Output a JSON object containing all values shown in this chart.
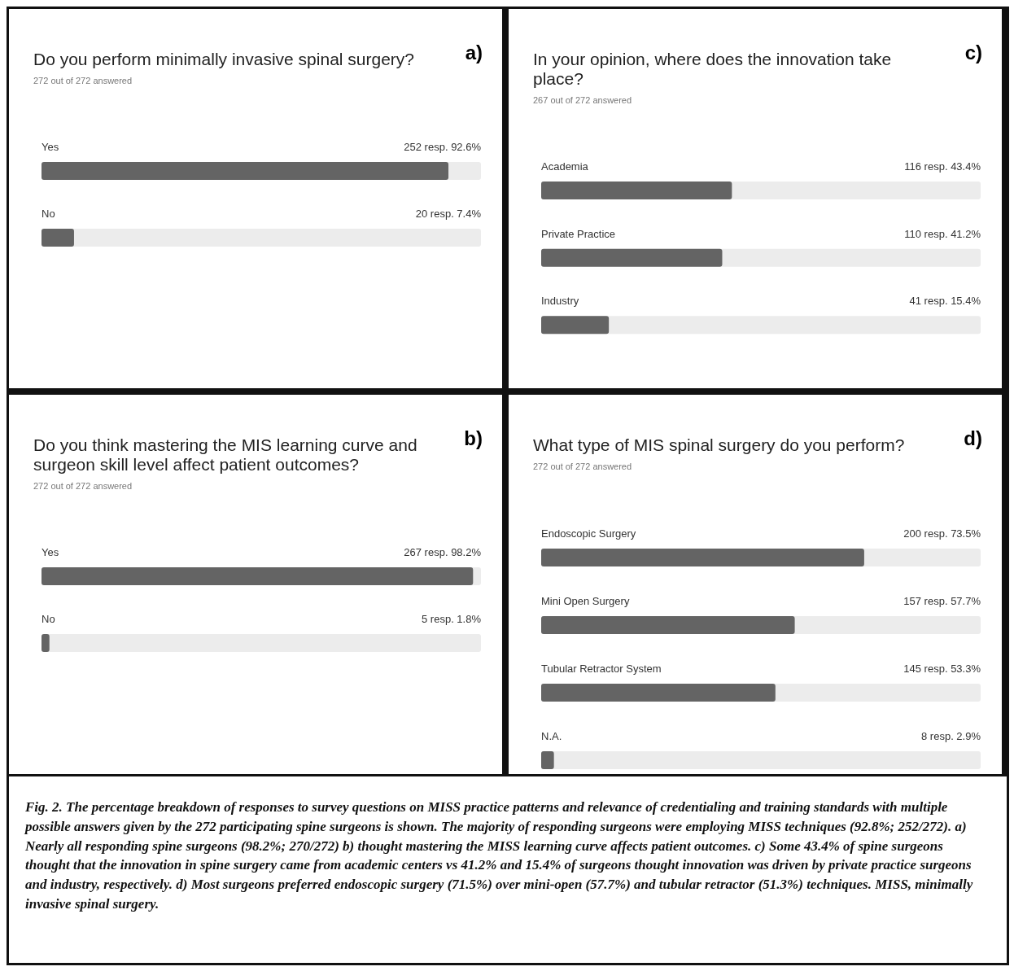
{
  "chart_data": [
    {
      "type": "bar",
      "orientation": "horizontal",
      "title": "Do you perform minimally invasive spinal surgery?",
      "subtitle": "272 out of 272 answered",
      "categories": [
        "Yes",
        "No"
      ],
      "values": [
        92.6,
        7.4
      ],
      "value_labels": [
        "252 resp.  92.6%",
        "20 resp.  7.4%"
      ],
      "color": "#646464",
      "xlim": [
        0,
        100
      ],
      "tick_labels": false,
      "annotations": [
        "a)"
      ]
    },
    {
      "type": "bar",
      "orientation": "horizontal",
      "title": "In your opinion, where does the innovation take place?",
      "subtitle": "267 out of 272 answered",
      "categories": [
        "Academia",
        "Private Practice",
        "Industry"
      ],
      "values": [
        43.4,
        41.2,
        15.4
      ],
      "value_labels": [
        "116 resp.  43.4%",
        "110 resp.  41.2%",
        "41 resp.  15.4%"
      ],
      "color": "#646464",
      "xlim": [
        0,
        100
      ],
      "tick_labels": false,
      "annotations": [
        "c)"
      ]
    },
    {
      "type": "bar",
      "orientation": "horizontal",
      "title": "Do you think mastering the MIS learning curve and surgeon skill level affect patient outcomes?",
      "subtitle": "272 out of 272 answered",
      "categories": [
        "Yes",
        "No"
      ],
      "values": [
        98.2,
        1.8
      ],
      "value_labels": [
        "267 resp.  98.2%",
        "5 resp.  1.8%"
      ],
      "color": "#646464",
      "xlim": [
        0,
        100
      ],
      "tick_labels": false,
      "annotations": [
        "b)"
      ]
    },
    {
      "type": "bar",
      "orientation": "horizontal",
      "title": "What type of MIS spinal surgery do you perform?",
      "subtitle": "272 out of 272 answered",
      "categories": [
        "Endoscopic Surgery",
        "Mini Open Surgery",
        "Tubular Retractor System",
        "N.A."
      ],
      "values": [
        73.5,
        57.7,
        53.3,
        2.9
      ],
      "value_labels": [
        "200 resp.  73.5%",
        "157 resp.  57.7%",
        "145 resp.  53.3%",
        "8 resp.  2.9%"
      ],
      "color": "#646464",
      "xlim": [
        0,
        100
      ],
      "tick_labels": false,
      "annotations": [
        "d)",
        "Fig. 2. The percentage breakdown of responses to survey questions on MISS practice patterns and relevance of credentialing and training standards with multiple possible answers given by the 272 participating spine surgeons is shown. The majority of responding surgeons were employing MISS techniques (92.8%; 252/272). a) Nearly all responding spine surgeons (98.2%; 270/272) b) thought mastering the MISS learning curve affects patient outcomes. c) Some 43.4% of spine surgeons thought that the innovation in spine surgery came from academic centers vs 41.2% and 15.4% of surgeons thought innovation was driven by private practice surgeons and industry, respectively. d) Most surgeons preferred endoscopic surgery (71.5%) over mini-open (57.7%) and tubular retractor (51.3%) techniques. MISS, minimally invasive spinal surgery."
      ]
    }
  ]
}
